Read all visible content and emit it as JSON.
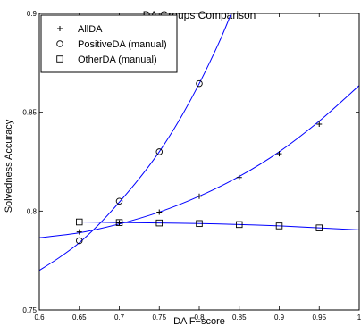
{
  "chart_data": {
    "type": "line",
    "title": "DA Groups Comparison",
    "xlabel": "DA F−score",
    "ylabel": "Solvedness Accuracy",
    "xlim": [
      0.6,
      1.0
    ],
    "ylim": [
      0.75,
      0.9
    ],
    "xticks": [
      "0.6",
      "0.65",
      "0.7",
      "0.75",
      "0.8",
      "0.85",
      "0.9",
      "0.95",
      "1"
    ],
    "yticks": [
      "0.75",
      "0.8",
      "0.85",
      "0.9"
    ],
    "grid": false,
    "legend_position": "top-left",
    "series": [
      {
        "name": "AllDA",
        "marker": "plus",
        "points": [
          [
            0.65,
            0.7895
          ],
          [
            0.7,
            0.794
          ],
          [
            0.75,
            0.7995
          ],
          [
            0.8,
            0.8075
          ],
          [
            0.85,
            0.817
          ],
          [
            0.9,
            0.829
          ],
          [
            0.95,
            0.844
          ]
        ],
        "fit_curve": [
          [
            0.6,
            0.7865
          ],
          [
            0.65,
            0.789
          ],
          [
            0.7,
            0.7935
          ],
          [
            0.75,
            0.7995
          ],
          [
            0.8,
            0.8075
          ],
          [
            0.85,
            0.8175
          ],
          [
            0.9,
            0.83
          ],
          [
            0.95,
            0.8455
          ],
          [
            1.0,
            0.8635
          ]
        ]
      },
      {
        "name": "PositiveDA (manual)",
        "marker": "circle",
        "points": [
          [
            0.65,
            0.785
          ],
          [
            0.7,
            0.805
          ],
          [
            0.75,
            0.83
          ],
          [
            0.8,
            0.8645
          ]
        ],
        "fit_curve": [
          [
            0.6,
            0.77
          ],
          [
            0.625,
            0.7765
          ],
          [
            0.65,
            0.784
          ],
          [
            0.675,
            0.7935
          ],
          [
            0.7,
            0.8045
          ],
          [
            0.725,
            0.8165
          ],
          [
            0.75,
            0.83
          ],
          [
            0.775,
            0.846
          ],
          [
            0.8,
            0.8645
          ],
          [
            0.825,
            0.8855
          ],
          [
            0.84,
            0.9
          ]
        ]
      },
      {
        "name": "OtherDA (manual)",
        "marker": "square",
        "points": [
          [
            0.65,
            0.7945
          ],
          [
            0.7,
            0.7942
          ],
          [
            0.75,
            0.794
          ],
          [
            0.8,
            0.7937
          ],
          [
            0.85,
            0.7932
          ],
          [
            0.9,
            0.7925
          ],
          [
            0.95,
            0.7915
          ]
        ],
        "fit_curve": [
          [
            0.6,
            0.7945
          ],
          [
            0.65,
            0.7945
          ],
          [
            0.7,
            0.7942
          ],
          [
            0.75,
            0.794
          ],
          [
            0.8,
            0.7937
          ],
          [
            0.85,
            0.7932
          ],
          [
            0.9,
            0.7925
          ],
          [
            0.95,
            0.7915
          ],
          [
            1.0,
            0.7905
          ]
        ]
      }
    ],
    "colors": {
      "line": "#0000ff",
      "marker": "#000000",
      "axis": "#000000"
    }
  }
}
